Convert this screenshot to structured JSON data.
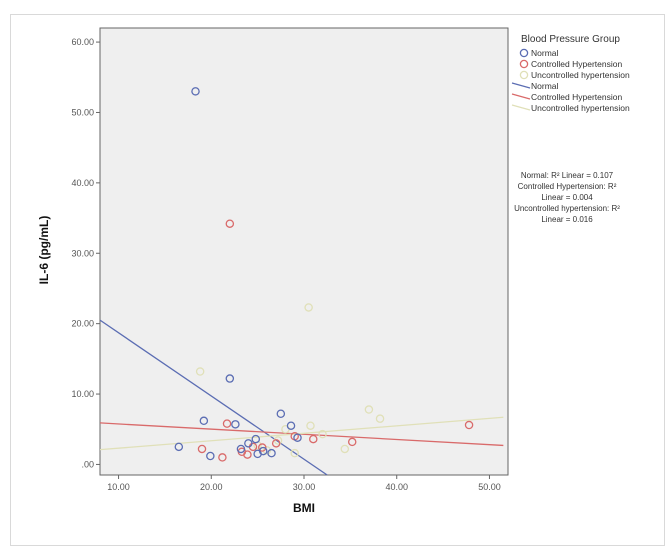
{
  "chart_data": {
    "type": "scatter",
    "xlabel": "BMI",
    "ylabel": "IL-6 (pg/mL)",
    "xlim": [
      8,
      52
    ],
    "ylim": [
      -1.5,
      62
    ],
    "x_ticks": [
      10,
      20,
      30,
      40,
      50
    ],
    "x_tick_labels": [
      "10.00",
      "20.00",
      "30.00",
      "40.00",
      "50.00"
    ],
    "y_ticks": [
      0,
      10,
      20,
      30,
      40,
      50,
      60
    ],
    "y_tick_labels": [
      ".00",
      "10.00",
      "20.00",
      "30.00",
      "40.00",
      "50.00",
      "60.00"
    ],
    "grid": false,
    "legend": {
      "title": "Blood Pressure Group",
      "placement": "right",
      "entries": [
        {
          "label": "Normal",
          "kind": "marker",
          "series": 0
        },
        {
          "label": "Controlled Hypertension",
          "kind": "marker",
          "series": 1
        },
        {
          "label": "Uncontrolled hypertension",
          "kind": "marker",
          "series": 2
        },
        {
          "label": "Normal",
          "kind": "line",
          "series": 0
        },
        {
          "label": "Controlled Hypertension",
          "kind": "line",
          "series": 1
        },
        {
          "label": "Uncontrolled hypertension",
          "kind": "line",
          "series": 2
        }
      ]
    },
    "annotation_lines": [
      "Normal: R² Linear = 0.107",
      "Controlled Hypertension: R²",
      "Linear = 0.004",
      "Uncontrolled hypertension: R²",
      "Linear = 0.016"
    ],
    "series": [
      {
        "name": "Normal",
        "color": "#5b6db3",
        "points": [
          [
            16.5,
            2.5
          ],
          [
            19.2,
            6.2
          ],
          [
            19.9,
            1.2
          ],
          [
            18.3,
            53.0
          ],
          [
            22.0,
            12.2
          ],
          [
            23.2,
            2.2
          ],
          [
            24.0,
            3.0
          ],
          [
            24.8,
            3.6
          ],
          [
            25.6,
            1.9
          ],
          [
            26.5,
            1.6
          ],
          [
            27.5,
            7.2
          ],
          [
            28.6,
            5.5
          ],
          [
            29.3,
            3.8
          ],
          [
            22.6,
            5.7
          ],
          [
            25.0,
            1.5
          ]
        ],
        "fit": {
          "x1": 8,
          "y1": 20.5,
          "x2": 32.5,
          "y2": -1.5
        }
      },
      {
        "name": "Controlled Hypertension",
        "color": "#d96a6a",
        "points": [
          [
            19.0,
            2.2
          ],
          [
            21.2,
            1.0
          ],
          [
            22.0,
            34.2
          ],
          [
            21.7,
            5.8
          ],
          [
            23.3,
            1.8
          ],
          [
            24.5,
            2.5
          ],
          [
            25.5,
            2.4
          ],
          [
            27.0,
            3.0
          ],
          [
            29.0,
            4.0
          ],
          [
            31.0,
            3.6
          ],
          [
            35.2,
            3.2
          ],
          [
            47.8,
            5.6
          ],
          [
            23.9,
            1.4
          ]
        ],
        "fit": {
          "x1": 8,
          "y1": 5.9,
          "x2": 51.5,
          "y2": 2.7
        }
      },
      {
        "name": "Uncontrolled hypertension",
        "color": "#e0e0b8",
        "points": [
          [
            18.8,
            13.2
          ],
          [
            30.5,
            22.3
          ],
          [
            25.0,
            2.7
          ],
          [
            27.2,
            3.4
          ],
          [
            29.0,
            1.6
          ],
          [
            30.7,
            5.5
          ],
          [
            34.4,
            2.2
          ],
          [
            37.0,
            7.8
          ],
          [
            38.2,
            6.5
          ],
          [
            28.0,
            5.0
          ],
          [
            32.0,
            4.3
          ],
          [
            26.0,
            2.0
          ]
        ],
        "fit": {
          "x1": 8,
          "y1": 2.1,
          "x2": 51.5,
          "y2": 6.7
        }
      }
    ]
  }
}
